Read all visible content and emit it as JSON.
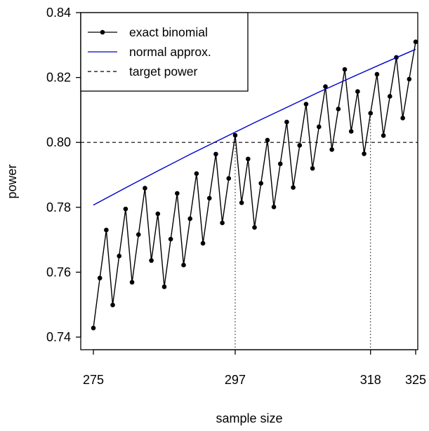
{
  "chart_data": {
    "type": "line",
    "xlabel": "sample size",
    "ylabel": "power",
    "xlim": [
      275,
      325
    ],
    "ylim": [
      0.74,
      0.84
    ],
    "x_ticks": [
      "275",
      "297",
      "318",
      "325"
    ],
    "y_ticks": [
      "0.74",
      "0.76",
      "0.78",
      "0.80",
      "0.82",
      "0.84"
    ],
    "legend": {
      "position": "top-left",
      "items": [
        "exact binomial",
        "normal approx.",
        "target power"
      ]
    },
    "reference_lines": {
      "target_power": 0.8,
      "vertical_markers_x": [
        297,
        318
      ]
    },
    "series": [
      {
        "name": "exact binomial",
        "color": "#000000",
        "x": [
          275,
          276,
          277,
          278,
          279,
          280,
          281,
          282,
          283,
          284,
          285,
          286,
          287,
          288,
          289,
          290,
          291,
          292,
          293,
          294,
          295,
          296,
          297,
          298,
          299,
          300,
          301,
          302,
          303,
          304,
          305,
          306,
          307,
          308,
          309,
          310,
          311,
          312,
          313,
          314,
          315,
          316,
          317,
          318,
          319,
          320,
          321,
          322,
          323,
          324,
          325
        ],
        "values": [
          0.7428,
          0.7582,
          0.773,
          0.7499,
          0.765,
          0.7795,
          0.7569,
          0.7716,
          0.7859,
          0.7636,
          0.778,
          0.7555,
          0.7702,
          0.7843,
          0.7622,
          0.7765,
          0.7904,
          0.7689,
          0.7828,
          0.7964,
          0.7752,
          0.7889,
          0.8022,
          0.7814,
          0.7949,
          0.7738,
          0.7874,
          0.8007,
          0.7801,
          0.7934,
          0.8063,
          0.7861,
          0.7991,
          0.8118,
          0.792,
          0.8048,
          0.8172,
          0.7978,
          0.8103,
          0.8225,
          0.8034,
          0.8157,
          0.7965,
          0.809,
          0.821,
          0.8021,
          0.8142,
          0.8262,
          0.8075,
          0.8195,
          0.831
        ]
      },
      {
        "name": "normal approx.",
        "color": "#0000cc",
        "x": [
          275,
          280,
          285,
          290,
          295,
          300,
          305,
          310,
          315,
          320,
          325
        ],
        "values": [
          0.7807,
          0.786,
          0.7912,
          0.7963,
          0.8012,
          0.8061,
          0.8108,
          0.8155,
          0.82,
          0.8244,
          0.8287
        ]
      }
    ]
  }
}
